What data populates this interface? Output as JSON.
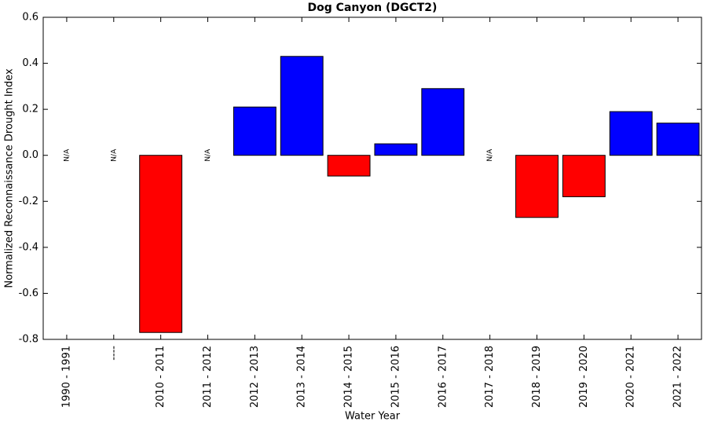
{
  "chart_data": {
    "type": "bar",
    "title": "Dog Canyon (DGCT2)",
    "x_label": "Water Year",
    "y_label": "Normalized Reconnaissance Drought Index",
    "categories": [
      "1990 - 1991",
      "----",
      "2010 - 2011",
      "2011 - 2012",
      "2012 - 2013",
      "2013 - 2014",
      "2014 - 2015",
      "2015 - 2016",
      "2016 - 2017",
      "2017 - 2018",
      "2018 - 2019",
      "2019 - 2020",
      "2020 - 2021",
      "2021 - 2022"
    ],
    "values": [
      null,
      null,
      -0.77,
      null,
      0.21,
      0.43,
      -0.09,
      0.05,
      0.29,
      null,
      -0.27,
      -0.18,
      0.19,
      0.14
    ],
    "value_labels": [
      "N/A",
      "N/A",
      null,
      "N/A",
      null,
      null,
      null,
      null,
      null,
      "N/A",
      null,
      null,
      null,
      null
    ],
    "positive_color": "#0000ff",
    "negative_color": "#ff0000",
    "ylim": [
      -0.8,
      0.6
    ],
    "yticks": [
      -0.8,
      -0.6,
      -0.4,
      -0.2,
      {
        "value": 0,
        "label": "0.0"
      },
      0.2,
      0.4,
      0.6
    ]
  }
}
